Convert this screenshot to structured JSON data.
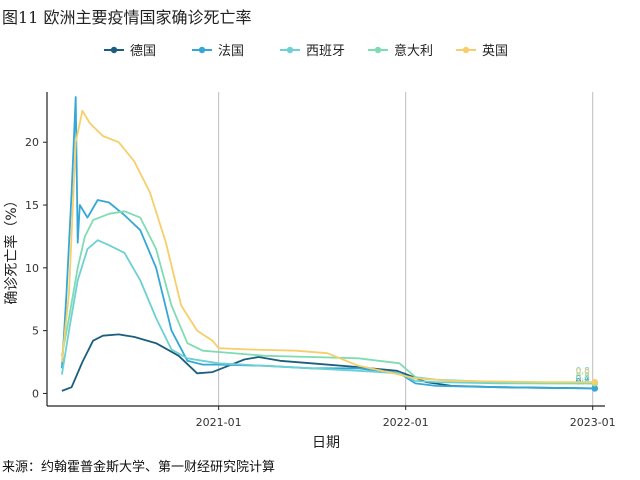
{
  "title": "图11 欧洲主要疫情国家确诊死亡率",
  "source": "来源：约翰霍普金斯大学、第一财经研究院计算",
  "chart_data": {
    "type": "line",
    "xlabel": "日期",
    "ylabel": "确诊死亡率（%）",
    "x_ticks": [
      "2021-01",
      "2022-01",
      "2023-01"
    ],
    "y_ticks": [
      "0",
      "5",
      "10",
      "15",
      "20"
    ],
    "ylim": [
      -1,
      24
    ],
    "xlim": [
      "2020-02-01",
      "2023-01-25"
    ],
    "grid": "vertical-major",
    "legend": "top",
    "series": [
      {
        "name": "德国",
        "color": "#1b5e7e",
        "end_label": "0.4",
        "points": [
          [
            "2020-03-01",
            0.2
          ],
          [
            "2020-03-20",
            0.5
          ],
          [
            "2020-04-10",
            2.5
          ],
          [
            "2020-05-01",
            4.2
          ],
          [
            "2020-05-20",
            4.6
          ],
          [
            "2020-06-20",
            4.7
          ],
          [
            "2020-07-20",
            4.5
          ],
          [
            "2020-09-01",
            4.0
          ],
          [
            "2020-10-15",
            3.0
          ],
          [
            "2020-11-20",
            1.6
          ],
          [
            "2020-12-20",
            1.7
          ],
          [
            "2021-01-20",
            2.2
          ],
          [
            "2021-02-20",
            2.7
          ],
          [
            "2021-03-20",
            2.9
          ],
          [
            "2021-05-01",
            2.6
          ],
          [
            "2021-07-01",
            2.4
          ],
          [
            "2021-10-01",
            2.1
          ],
          [
            "2021-12-15",
            1.8
          ],
          [
            "2022-01-10",
            1.4
          ],
          [
            "2022-02-10",
            0.9
          ],
          [
            "2022-04-01",
            0.6
          ],
          [
            "2022-07-01",
            0.5
          ],
          [
            "2022-10-01",
            0.45
          ],
          [
            "2023-01-05",
            0.4
          ]
        ]
      },
      {
        "name": "法国",
        "color": "#35a7d6",
        "end_label": "0.4",
        "points": [
          [
            "2020-03-01",
            2.0
          ],
          [
            "2020-03-10",
            8.0
          ],
          [
            "2020-03-20",
            16.0
          ],
          [
            "2020-03-28",
            23.6
          ],
          [
            "2020-04-01",
            12.0
          ],
          [
            "2020-04-05",
            15.0
          ],
          [
            "2020-04-20",
            14.0
          ],
          [
            "2020-05-10",
            15.4
          ],
          [
            "2020-06-01",
            15.2
          ],
          [
            "2020-07-01",
            14.2
          ],
          [
            "2020-08-01",
            13.0
          ],
          [
            "2020-09-01",
            10.0
          ],
          [
            "2020-10-01",
            5.0
          ],
          [
            "2020-11-01",
            2.6
          ],
          [
            "2020-12-01",
            2.3
          ],
          [
            "2021-01-01",
            2.3
          ],
          [
            "2021-04-01",
            2.2
          ],
          [
            "2021-07-01",
            2.0
          ],
          [
            "2021-10-01",
            2.0
          ],
          [
            "2021-12-20",
            1.6
          ],
          [
            "2022-01-20",
            0.8
          ],
          [
            "2022-03-01",
            0.6
          ],
          [
            "2022-07-01",
            0.5
          ],
          [
            "2022-10-01",
            0.45
          ],
          [
            "2023-01-05",
            0.4
          ]
        ]
      },
      {
        "name": "西班牙",
        "color": "#6dd0d4",
        "end_label": "0.8",
        "points": [
          [
            "2020-03-01",
            1.5
          ],
          [
            "2020-03-15",
            5.0
          ],
          [
            "2020-04-01",
            9.0
          ],
          [
            "2020-04-20",
            11.5
          ],
          [
            "2020-05-10",
            12.2
          ],
          [
            "2020-06-01",
            11.8
          ],
          [
            "2020-07-01",
            11.2
          ],
          [
            "2020-08-01",
            9.0
          ],
          [
            "2020-09-01",
            6.0
          ],
          [
            "2020-10-01",
            3.5
          ],
          [
            "2020-11-01",
            2.8
          ],
          [
            "2020-12-01",
            2.6
          ],
          [
            "2021-01-01",
            2.4
          ],
          [
            "2021-04-01",
            2.2
          ],
          [
            "2021-07-01",
            2.0
          ],
          [
            "2021-10-01",
            1.8
          ],
          [
            "2021-12-20",
            1.6
          ],
          [
            "2022-01-20",
            1.0
          ],
          [
            "2022-03-01",
            0.9
          ],
          [
            "2022-07-01",
            0.8
          ],
          [
            "2022-10-01",
            0.8
          ],
          [
            "2023-01-05",
            0.8
          ]
        ]
      },
      {
        "name": "意大利",
        "color": "#7fdcb2",
        "end_label": "0.8",
        "points": [
          [
            "2020-03-01",
            3.0
          ],
          [
            "2020-03-15",
            6.0
          ],
          [
            "2020-04-01",
            10.0
          ],
          [
            "2020-04-15",
            12.5
          ],
          [
            "2020-05-01",
            13.8
          ],
          [
            "2020-06-01",
            14.3
          ],
          [
            "2020-07-01",
            14.5
          ],
          [
            "2020-08-01",
            14.0
          ],
          [
            "2020-09-01",
            11.5
          ],
          [
            "2020-10-01",
            7.0
          ],
          [
            "2020-11-01",
            4.0
          ],
          [
            "2020-12-01",
            3.4
          ],
          [
            "2021-01-01",
            3.3
          ],
          [
            "2021-04-01",
            3.0
          ],
          [
            "2021-07-01",
            2.9
          ],
          [
            "2021-10-01",
            2.8
          ],
          [
            "2021-12-20",
            2.4
          ],
          [
            "2022-01-20",
            1.3
          ],
          [
            "2022-03-01",
            1.1
          ],
          [
            "2022-07-01",
            0.9
          ],
          [
            "2022-10-01",
            0.8
          ],
          [
            "2023-01-05",
            0.8
          ]
        ]
      },
      {
        "name": "英国",
        "color": "#f6cf6a",
        "end_label": "0.9",
        "points": [
          [
            "2020-03-01",
            2.5
          ],
          [
            "2020-03-15",
            8.0
          ],
          [
            "2020-03-28",
            20.0
          ],
          [
            "2020-04-10",
            22.5
          ],
          [
            "2020-04-25",
            21.5
          ],
          [
            "2020-05-20",
            20.5
          ],
          [
            "2020-06-20",
            20.0
          ],
          [
            "2020-07-20",
            18.5
          ],
          [
            "2020-08-20",
            16.0
          ],
          [
            "2020-09-20",
            12.0
          ],
          [
            "2020-10-20",
            7.0
          ],
          [
            "2020-11-20",
            5.0
          ],
          [
            "2020-12-20",
            4.2
          ],
          [
            "2021-01-01",
            3.6
          ],
          [
            "2021-03-01",
            3.5
          ],
          [
            "2021-06-01",
            3.4
          ],
          [
            "2021-08-01",
            3.2
          ],
          [
            "2021-10-01",
            2.2
          ],
          [
            "2021-12-20",
            1.5
          ],
          [
            "2022-01-20",
            1.2
          ],
          [
            "2022-04-01",
            1.0
          ],
          [
            "2022-07-01",
            0.95
          ],
          [
            "2022-10-01",
            0.9
          ],
          [
            "2023-01-05",
            0.9
          ]
        ]
      }
    ]
  }
}
